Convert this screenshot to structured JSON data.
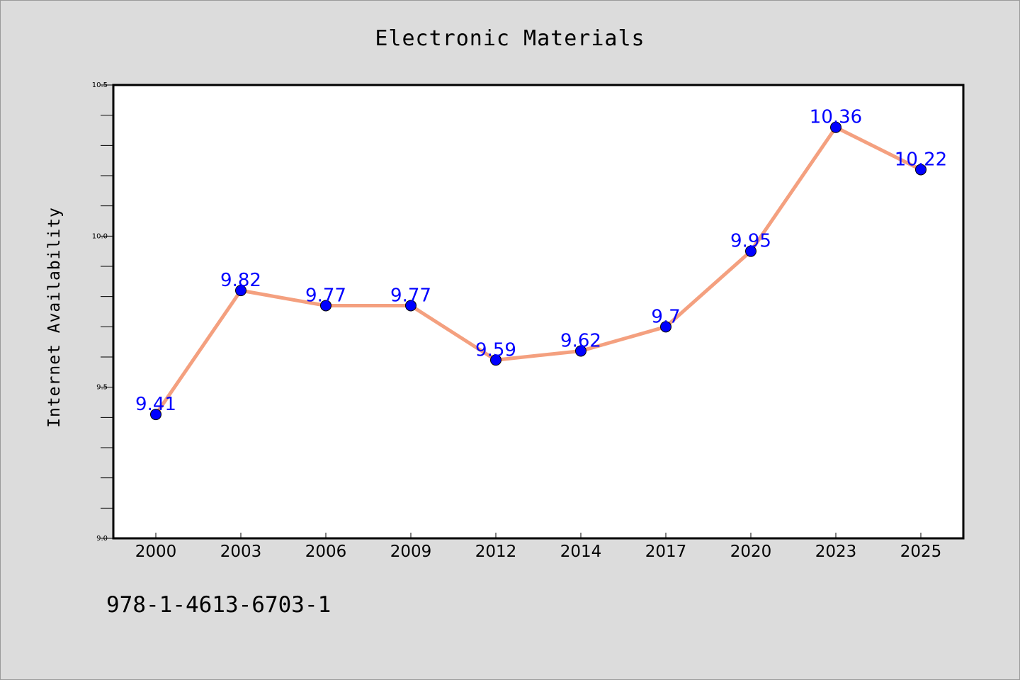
{
  "chart_data": {
    "type": "line",
    "title": "Electronic Materials",
    "xlabel": "",
    "ylabel": "Internet Availability",
    "categories": [
      "2000",
      "2003",
      "2006",
      "2009",
      "2012",
      "2014",
      "2017",
      "2020",
      "2023",
      "2025"
    ],
    "series": [
      {
        "values": [
          9.41,
          9.82,
          9.77,
          9.77,
          9.59,
          9.62,
          9.7,
          9.95,
          10.36,
          10.22
        ],
        "labels": [
          "9.41",
          "9.82",
          "9.77",
          "9.77",
          "9.59",
          "9.62",
          "9.7",
          "9.95",
          "10.36",
          "10.22"
        ]
      }
    ],
    "ylim": [
      9.0,
      10.5
    ],
    "yticks_major": [
      "9.0",
      "9.5",
      "10.0",
      "10.5"
    ],
    "yminor_step": 0.1,
    "grid": false,
    "legend": "none",
    "colors": {
      "background": "#dcdcdc",
      "plot_background": "#ffffff",
      "line": "#f4a07f",
      "marker": "#0000ff",
      "data_label": "#0000ff"
    }
  },
  "footer": {
    "isbn": "978-1-4613-6703-1"
  }
}
